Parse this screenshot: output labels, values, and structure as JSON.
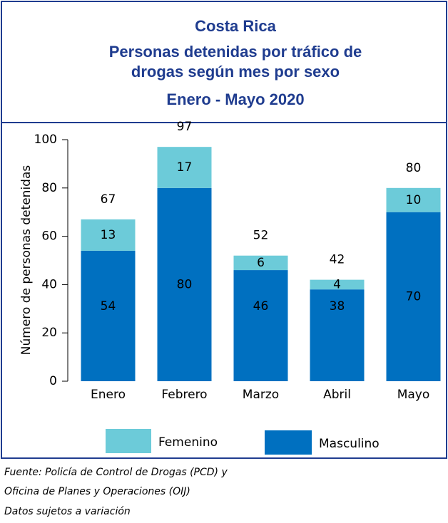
{
  "chart_data": {
    "type": "stacked_bar",
    "title": "Costa Rica",
    "subtitle": [
      "Personas detenidas  por tráfico de",
      "drogas según mes por sexo"
    ],
    "period": "Enero - Mayo  2020",
    "y_label": "Número de personas detenidas",
    "categories": [
      "Enero",
      "Febrero",
      "Marzo",
      "Abril",
      "Mayo"
    ],
    "series": [
      {
        "name": "Masculino",
        "color": "#0070c0",
        "values": [
          54,
          80,
          46,
          38,
          70
        ]
      },
      {
        "name": "Femenino",
        "color": "#6ccbd9",
        "values": [
          13,
          17,
          6,
          4,
          10
        ]
      }
    ],
    "totals": [
      67,
      97,
      52,
      42,
      80
    ],
    "ylim": [
      0,
      100
    ],
    "yticks": [
      0,
      20,
      40,
      60,
      80,
      100
    ],
    "notes": [
      "Fuente: Policía de Control de Drogas (PCD) y",
      "Oficina de Planes y Operaciones (OIJ)",
      "Datos sujetos a variación"
    ]
  }
}
